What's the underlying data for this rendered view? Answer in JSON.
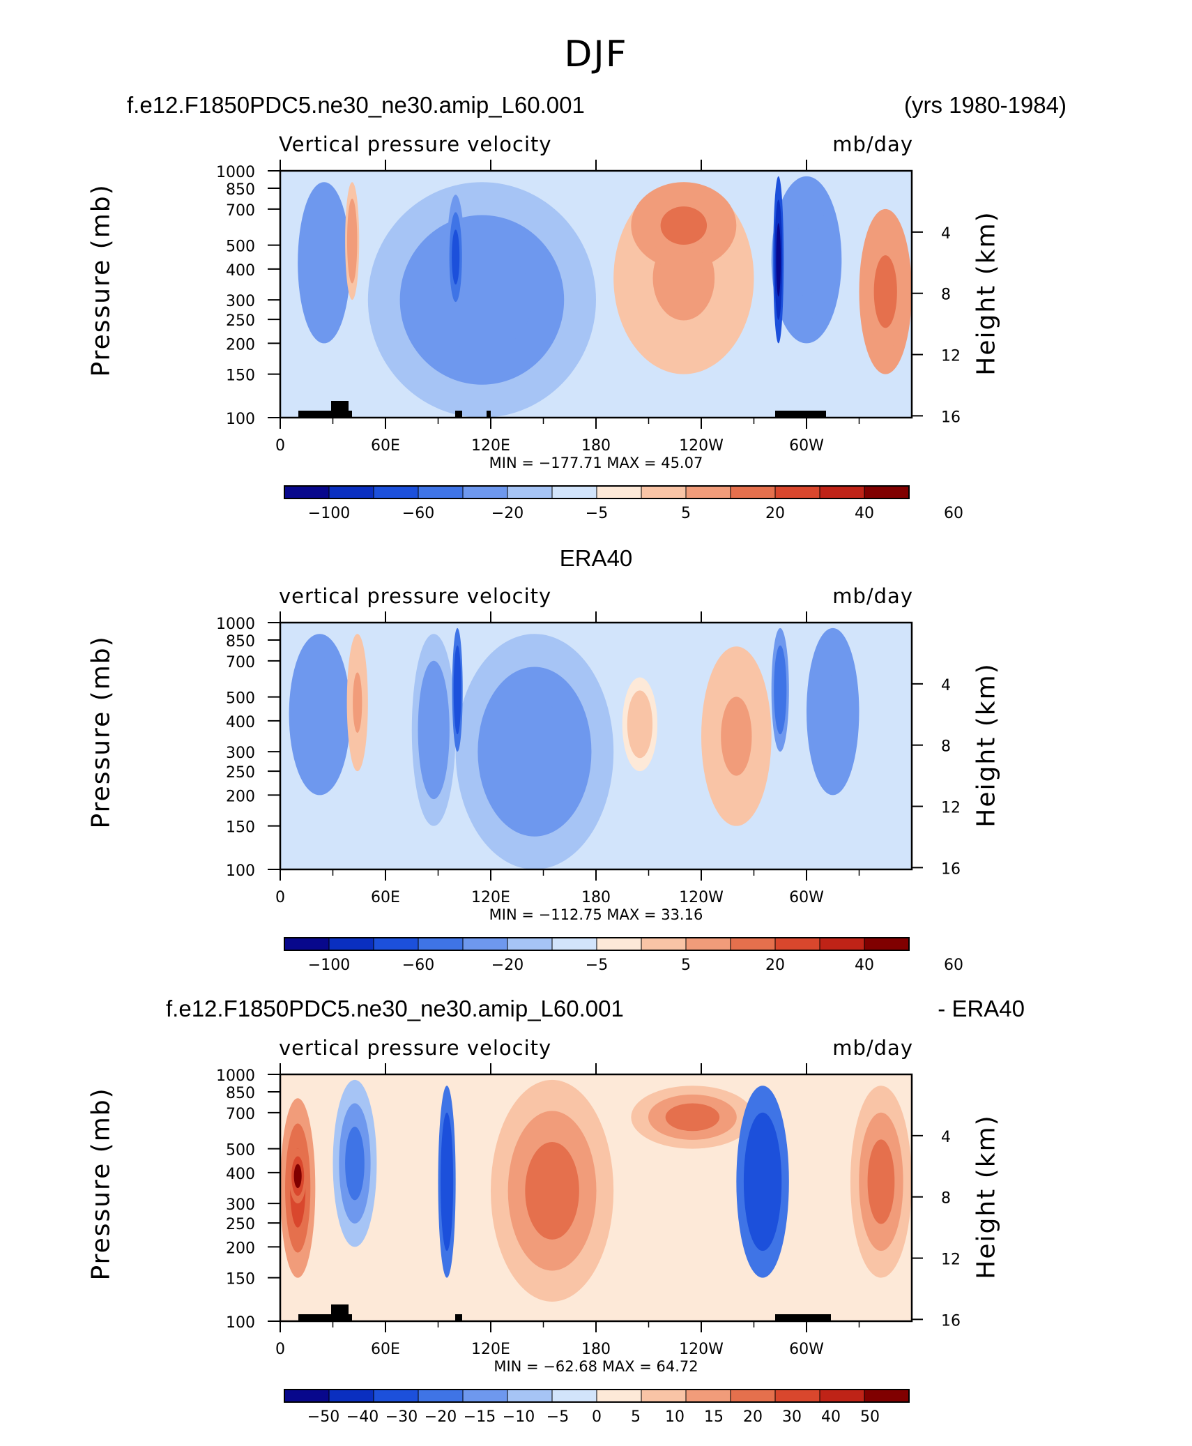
{
  "figure_title": "DJF",
  "panels": [
    {
      "title_left": "f.e12.F1850PDC5.ne30_ne30.amip_L60.001",
      "title_right": "(yrs 1980-1984)",
      "title_center": "",
      "var_label": "Vertical pressure velocity",
      "units": "mb/day",
      "min_max": "MIN = −177.71   MAX =   45.07"
    },
    {
      "title_left": "",
      "title_right": "",
      "title_center": "ERA40",
      "var_label": "vertical pressure velocity",
      "units": "mb/day",
      "min_max": "MIN = −112.75   MAX =   33.16"
    },
    {
      "title_left": "f.e12.F1850PDC5.ne30_ne30.amip_L60.001",
      "title_right": "- ERA40",
      "title_center": "",
      "var_label": "vertical pressure velocity",
      "units": "mb/day",
      "min_max": "MIN = −62.68   MAX =   64.72"
    }
  ],
  "axis_labels": {
    "left": "Pressure (mb)",
    "right": "Height (km)"
  },
  "colors": {
    "scale": [
      "#08088c",
      "#0a2fc0",
      "#1c50db",
      "#3f74e6",
      "#6e98ee",
      "#a6c4f5",
      "#d2e4fb",
      "#fde9d8",
      "#f9c4a6",
      "#f19c7a",
      "#e5704d",
      "#d9472d",
      "#bf2317",
      "#800000"
    ]
  },
  "colorbar_ticks": [
    [
      "−100",
      "−60",
      "−20",
      "−5",
      "5",
      "20",
      "40",
      "60"
    ],
    [
      "−100",
      "−60",
      "−20",
      "−5",
      "5",
      "20",
      "40",
      "60"
    ],
    [
      "−50",
      "−40",
      "−30",
      "−20",
      "−15",
      "−10",
      "−5",
      "0",
      "5",
      "10",
      "15",
      "20",
      "30",
      "40",
      "50"
    ]
  ],
  "chart_data": [
    {
      "type": "heatmap",
      "title": "f.e12.F1850PDC5.ne30_ne30.amip_L60.001 (yrs 1980-1984)",
      "variable": "Vertical pressure velocity",
      "units": "mb/day",
      "x_ticks": [
        "0",
        "60E",
        "120E",
        "180",
        "120W",
        "60W"
      ],
      "y_ticks_left": [
        100,
        150,
        200,
        250,
        300,
        400,
        500,
        700,
        850,
        1000
      ],
      "y_ticks_right": [
        16,
        12,
        8,
        4
      ],
      "xlim": [
        0,
        360
      ],
      "ylim": [
        1000,
        100
      ],
      "y_scale": "log",
      "min": -177.71,
      "max": 45.07,
      "features": [
        {
          "lon": [
            330,
            360
          ],
          "plev": [
            150,
            700
          ],
          "value": 20
        },
        {
          "lon": [
            190,
            270
          ],
          "plev": [
            150,
            900
          ],
          "value": 10
        },
        {
          "lon": [
            200,
            260
          ],
          "plev": [
            400,
            900
          ],
          "value": 25
        },
        {
          "lon": [
            50,
            180
          ],
          "plev": [
            100,
            900
          ],
          "value": -30
        },
        {
          "lon": [
            95,
            105
          ],
          "plev": [
            250,
            800
          ],
          "value": -70
        },
        {
          "lon": [
            10,
            40
          ],
          "plev": [
            200,
            900
          ],
          "value": -40
        },
        {
          "lon": [
            37,
            45
          ],
          "plev": [
            300,
            900
          ],
          "value": 15
        },
        {
          "lon": [
            280,
            320
          ],
          "plev": [
            200,
            950
          ],
          "value": -40
        },
        {
          "lon": [
            281,
            287
          ],
          "plev": [
            200,
            950
          ],
          "value": -120
        }
      ]
    },
    {
      "type": "heatmap",
      "title": "ERA40",
      "variable": "vertical pressure velocity",
      "units": "mb/day",
      "x_ticks": [
        "0",
        "60E",
        "120E",
        "180",
        "120W",
        "60W"
      ],
      "y_ticks_left": [
        100,
        150,
        200,
        250,
        300,
        400,
        500,
        700,
        850,
        1000
      ],
      "y_ticks_right": [
        16,
        12,
        8,
        4
      ],
      "xlim": [
        0,
        360
      ],
      "ylim": [
        1000,
        100
      ],
      "y_scale": "log",
      "min": -112.75,
      "max": 33.16,
      "features": [
        {
          "lon": [
            100,
            190
          ],
          "plev": [
            100,
            900
          ],
          "value": -35
        },
        {
          "lon": [
            75,
            100
          ],
          "plev": [
            150,
            900
          ],
          "value": -35
        },
        {
          "lon": [
            98,
            104
          ],
          "plev": [
            300,
            950
          ],
          "value": -80
        },
        {
          "lon": [
            5,
            40
          ],
          "plev": [
            200,
            900
          ],
          "value": -40
        },
        {
          "lon": [
            38,
            50
          ],
          "plev": [
            250,
            900
          ],
          "value": 12
        },
        {
          "lon": [
            240,
            280
          ],
          "plev": [
            150,
            800
          ],
          "value": 10
        },
        {
          "lon": [
            195,
            215
          ],
          "plev": [
            250,
            600
          ],
          "value": 8
        },
        {
          "lon": [
            280,
            290
          ],
          "plev": [
            300,
            950
          ],
          "value": -60
        },
        {
          "lon": [
            300,
            330
          ],
          "plev": [
            200,
            950
          ],
          "value": -40
        }
      ]
    },
    {
      "type": "heatmap",
      "title": "f.e12.F1850PDC5.ne30_ne30.amip_L60.001 - ERA40",
      "variable": "vertical pressure velocity",
      "units": "mb/day",
      "x_ticks": [
        "0",
        "60E",
        "120E",
        "180",
        "120W",
        "60W"
      ],
      "y_ticks_left": [
        100,
        150,
        200,
        250,
        300,
        400,
        500,
        700,
        850,
        1000
      ],
      "y_ticks_right": [
        16,
        12,
        8,
        4
      ],
      "xlim": [
        0,
        360
      ],
      "ylim": [
        1000,
        100
      ],
      "y_scale": "log",
      "min": -62.68,
      "max": 64.72,
      "features": [
        {
          "lon": [
            0,
            20
          ],
          "plev": [
            150,
            800
          ],
          "value": 30
        },
        {
          "lon": [
            5,
            15
          ],
          "plev": [
            300,
            500
          ],
          "value": 50
        },
        {
          "lon": [
            120,
            190
          ],
          "plev": [
            120,
            950
          ],
          "value": 20
        },
        {
          "lon": [
            200,
            270
          ],
          "plev": [
            500,
            900
          ],
          "value": 20
        },
        {
          "lon": [
            325,
            360
          ],
          "plev": [
            150,
            900
          ],
          "value": 25
        },
        {
          "lon": [
            90,
            100
          ],
          "plev": [
            150,
            900
          ],
          "value": -40
        },
        {
          "lon": [
            260,
            290
          ],
          "plev": [
            150,
            900
          ],
          "value": -40
        },
        {
          "lon": [
            30,
            55
          ],
          "plev": [
            200,
            950
          ],
          "value": -25
        }
      ]
    }
  ]
}
